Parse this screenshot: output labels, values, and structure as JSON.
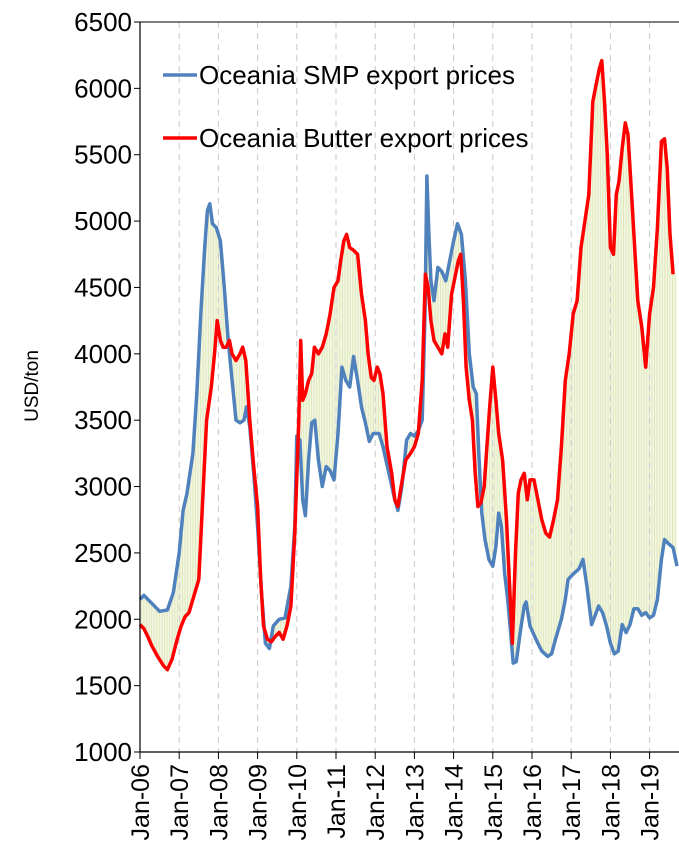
{
  "chart_data": {
    "type": "line",
    "title": "",
    "xlabel": "",
    "ylabel": "USD/ton",
    "ylim": [
      1000,
      6500
    ],
    "y_ticks": [
      "6500",
      "6000",
      "5500",
      "5000",
      "4500",
      "4000",
      "3500",
      "3000",
      "2500",
      "2000",
      "1500",
      "1000"
    ],
    "x_tick_labels": [
      "Jan-06",
      "Jan-07",
      "Jan-08",
      "Jan-09",
      "Jan-10",
      "Jan-11",
      "Jan-12",
      "Jan-13",
      "Jan-14",
      "Jan-15",
      "Jan-16",
      "Jan-17",
      "Jan-18",
      "Jan-19"
    ],
    "grid": "vertical dashed",
    "legend_position": "top-left",
    "series": [
      {
        "name": "Oceania SMP export prices",
        "color": "#4f81bd",
        "points": [
          [
            2006.0,
            2150
          ],
          [
            2006.1,
            2180
          ],
          [
            2006.3,
            2120
          ],
          [
            2006.5,
            2060
          ],
          [
            2006.7,
            2070
          ],
          [
            2006.85,
            2200
          ],
          [
            2007.0,
            2500
          ],
          [
            2007.1,
            2820
          ],
          [
            2007.2,
            2950
          ],
          [
            2007.35,
            3250
          ],
          [
            2007.45,
            3700
          ],
          [
            2007.55,
            4300
          ],
          [
            2007.65,
            4800
          ],
          [
            2007.72,
            5080
          ],
          [
            2007.78,
            5130
          ],
          [
            2007.85,
            4980
          ],
          [
            2007.95,
            4950
          ],
          [
            2008.05,
            4850
          ],
          [
            2008.15,
            4500
          ],
          [
            2008.25,
            4100
          ],
          [
            2008.35,
            3800
          ],
          [
            2008.45,
            3500
          ],
          [
            2008.55,
            3480
          ],
          [
            2008.65,
            3500
          ],
          [
            2008.72,
            3600
          ],
          [
            2008.8,
            3450
          ],
          [
            2008.9,
            3100
          ],
          [
            2009.0,
            2700
          ],
          [
            2009.1,
            2200
          ],
          [
            2009.2,
            1820
          ],
          [
            2009.3,
            1780
          ],
          [
            2009.4,
            1950
          ],
          [
            2009.55,
            2000
          ],
          [
            2009.7,
            2010
          ],
          [
            2009.85,
            2250
          ],
          [
            2009.95,
            2700
          ],
          [
            2010.0,
            3380
          ],
          [
            2010.08,
            3350
          ],
          [
            2010.15,
            2900
          ],
          [
            2010.22,
            2780
          ],
          [
            2010.3,
            3200
          ],
          [
            2010.38,
            3480
          ],
          [
            2010.46,
            3500
          ],
          [
            2010.55,
            3200
          ],
          [
            2010.65,
            3000
          ],
          [
            2010.75,
            3150
          ],
          [
            2010.85,
            3120
          ],
          [
            2010.95,
            3050
          ],
          [
            2011.05,
            3400
          ],
          [
            2011.15,
            3900
          ],
          [
            2011.25,
            3800
          ],
          [
            2011.35,
            3750
          ],
          [
            2011.45,
            3980
          ],
          [
            2011.55,
            3800
          ],
          [
            2011.65,
            3600
          ],
          [
            2011.75,
            3480
          ],
          [
            2011.85,
            3340
          ],
          [
            2011.95,
            3400
          ],
          [
            2012.1,
            3400
          ],
          [
            2012.2,
            3300
          ],
          [
            2012.35,
            3100
          ],
          [
            2012.5,
            2900
          ],
          [
            2012.58,
            2820
          ],
          [
            2012.68,
            3000
          ],
          [
            2012.8,
            3350
          ],
          [
            2012.9,
            3400
          ],
          [
            2013.0,
            3380
          ],
          [
            2013.1,
            3420
          ],
          [
            2013.2,
            3500
          ],
          [
            2013.27,
            4300
          ],
          [
            2013.32,
            5340
          ],
          [
            2013.37,
            4900
          ],
          [
            2013.42,
            4550
          ],
          [
            2013.5,
            4400
          ],
          [
            2013.6,
            4650
          ],
          [
            2013.7,
            4620
          ],
          [
            2013.8,
            4550
          ],
          [
            2013.9,
            4700
          ],
          [
            2014.0,
            4850
          ],
          [
            2014.1,
            4980
          ],
          [
            2014.2,
            4900
          ],
          [
            2014.3,
            4550
          ],
          [
            2014.4,
            4000
          ],
          [
            2014.5,
            3750
          ],
          [
            2014.58,
            3700
          ],
          [
            2014.65,
            3200
          ],
          [
            2014.72,
            2800
          ],
          [
            2014.8,
            2600
          ],
          [
            2014.9,
            2450
          ],
          [
            2015.0,
            2400
          ],
          [
            2015.08,
            2550
          ],
          [
            2015.15,
            2800
          ],
          [
            2015.22,
            2700
          ],
          [
            2015.3,
            2350
          ],
          [
            2015.38,
            2150
          ],
          [
            2015.45,
            1920
          ],
          [
            2015.52,
            1670
          ],
          [
            2015.6,
            1680
          ],
          [
            2015.7,
            1900
          ],
          [
            2015.8,
            2100
          ],
          [
            2015.85,
            2130
          ],
          [
            2015.95,
            1950
          ],
          [
            2016.1,
            1850
          ],
          [
            2016.25,
            1760
          ],
          [
            2016.4,
            1720
          ],
          [
            2016.5,
            1740
          ],
          [
            2016.6,
            1850
          ],
          [
            2016.75,
            2000
          ],
          [
            2016.85,
            2150
          ],
          [
            2016.92,
            2300
          ],
          [
            2017.05,
            2340
          ],
          [
            2017.2,
            2380
          ],
          [
            2017.3,
            2450
          ],
          [
            2017.4,
            2250
          ],
          [
            2017.52,
            1960
          ],
          [
            2017.6,
            2020
          ],
          [
            2017.7,
            2100
          ],
          [
            2017.8,
            2050
          ],
          [
            2017.9,
            1950
          ],
          [
            2018.0,
            1820
          ],
          [
            2018.1,
            1740
          ],
          [
            2018.2,
            1760
          ],
          [
            2018.3,
            1960
          ],
          [
            2018.4,
            1900
          ],
          [
            2018.5,
            1960
          ],
          [
            2018.6,
            2080
          ],
          [
            2018.7,
            2080
          ],
          [
            2018.8,
            2030
          ],
          [
            2018.9,
            2050
          ],
          [
            2019.0,
            2010
          ],
          [
            2019.1,
            2030
          ],
          [
            2019.2,
            2150
          ],
          [
            2019.3,
            2450
          ],
          [
            2019.38,
            2600
          ],
          [
            2019.48,
            2570
          ],
          [
            2019.6,
            2540
          ],
          [
            2019.7,
            2400
          ]
        ]
      },
      {
        "name": "Oceania Butter export prices",
        "color": "#ff0000",
        "points": [
          [
            2006.0,
            1960
          ],
          [
            2006.1,
            1930
          ],
          [
            2006.2,
            1870
          ],
          [
            2006.3,
            1800
          ],
          [
            2006.45,
            1720
          ],
          [
            2006.6,
            1650
          ],
          [
            2006.7,
            1620
          ],
          [
            2006.82,
            1700
          ],
          [
            2006.95,
            1850
          ],
          [
            2007.05,
            1950
          ],
          [
            2007.15,
            2020
          ],
          [
            2007.25,
            2050
          ],
          [
            2007.35,
            2150
          ],
          [
            2007.5,
            2300
          ],
          [
            2007.6,
            2900
          ],
          [
            2007.7,
            3500
          ],
          [
            2007.82,
            3750
          ],
          [
            2007.9,
            4000
          ],
          [
            2007.97,
            4250
          ],
          [
            2008.05,
            4100
          ],
          [
            2008.12,
            4050
          ],
          [
            2008.2,
            4050
          ],
          [
            2008.28,
            4100
          ],
          [
            2008.35,
            4000
          ],
          [
            2008.45,
            3950
          ],
          [
            2008.55,
            4000
          ],
          [
            2008.62,
            4050
          ],
          [
            2008.7,
            3950
          ],
          [
            2008.8,
            3500
          ],
          [
            2008.9,
            3150
          ],
          [
            2009.0,
            2850
          ],
          [
            2009.08,
            2300
          ],
          [
            2009.15,
            1950
          ],
          [
            2009.25,
            1850
          ],
          [
            2009.35,
            1830
          ],
          [
            2009.45,
            1870
          ],
          [
            2009.55,
            1900
          ],
          [
            2009.65,
            1850
          ],
          [
            2009.75,
            1950
          ],
          [
            2009.85,
            2100
          ],
          [
            2009.95,
            2650
          ],
          [
            2010.05,
            3500
          ],
          [
            2010.1,
            4100
          ],
          [
            2010.15,
            3650
          ],
          [
            2010.22,
            3700
          ],
          [
            2010.3,
            3800
          ],
          [
            2010.38,
            3850
          ],
          [
            2010.45,
            4050
          ],
          [
            2010.55,
            4000
          ],
          [
            2010.65,
            4050
          ],
          [
            2010.75,
            4150
          ],
          [
            2010.85,
            4300
          ],
          [
            2010.95,
            4500
          ],
          [
            2011.05,
            4550
          ],
          [
            2011.12,
            4700
          ],
          [
            2011.2,
            4850
          ],
          [
            2011.27,
            4900
          ],
          [
            2011.35,
            4800
          ],
          [
            2011.45,
            4780
          ],
          [
            2011.55,
            4750
          ],
          [
            2011.65,
            4450
          ],
          [
            2011.75,
            4250
          ],
          [
            2011.82,
            4000
          ],
          [
            2011.9,
            3820
          ],
          [
            2011.97,
            3800
          ],
          [
            2012.05,
            3900
          ],
          [
            2012.12,
            3850
          ],
          [
            2012.2,
            3700
          ],
          [
            2012.3,
            3300
          ],
          [
            2012.42,
            3100
          ],
          [
            2012.5,
            2900
          ],
          [
            2012.58,
            2850
          ],
          [
            2012.66,
            3000
          ],
          [
            2012.78,
            3200
          ],
          [
            2012.9,
            3250
          ],
          [
            2013.0,
            3300
          ],
          [
            2013.1,
            3400
          ],
          [
            2013.2,
            3800
          ],
          [
            2013.28,
            4600
          ],
          [
            2013.35,
            4500
          ],
          [
            2013.42,
            4250
          ],
          [
            2013.5,
            4100
          ],
          [
            2013.6,
            4050
          ],
          [
            2013.7,
            4000
          ],
          [
            2013.78,
            4150
          ],
          [
            2013.85,
            4050
          ],
          [
            2013.95,
            4450
          ],
          [
            2014.05,
            4600
          ],
          [
            2014.12,
            4700
          ],
          [
            2014.18,
            4750
          ],
          [
            2014.25,
            4400
          ],
          [
            2014.32,
            3900
          ],
          [
            2014.4,
            3650
          ],
          [
            2014.48,
            3500
          ],
          [
            2014.55,
            3100
          ],
          [
            2014.62,
            2850
          ],
          [
            2014.7,
            2880
          ],
          [
            2014.78,
            3000
          ],
          [
            2014.85,
            3300
          ],
          [
            2014.92,
            3600
          ],
          [
            2015.0,
            3900
          ],
          [
            2015.08,
            3650
          ],
          [
            2015.15,
            3400
          ],
          [
            2015.25,
            3200
          ],
          [
            2015.35,
            2750
          ],
          [
            2015.42,
            2300
          ],
          [
            2015.5,
            1820
          ],
          [
            2015.58,
            2500
          ],
          [
            2015.65,
            2950
          ],
          [
            2015.72,
            3050
          ],
          [
            2015.8,
            3100
          ],
          [
            2015.88,
            2900
          ],
          [
            2015.95,
            3050
          ],
          [
            2016.05,
            3050
          ],
          [
            2016.15,
            2900
          ],
          [
            2016.25,
            2750
          ],
          [
            2016.35,
            2650
          ],
          [
            2016.45,
            2620
          ],
          [
            2016.55,
            2750
          ],
          [
            2016.65,
            2900
          ],
          [
            2016.75,
            3300
          ],
          [
            2016.85,
            3800
          ],
          [
            2016.95,
            4000
          ],
          [
            2017.05,
            4300
          ],
          [
            2017.15,
            4400
          ],
          [
            2017.25,
            4800
          ],
          [
            2017.35,
            5000
          ],
          [
            2017.45,
            5200
          ],
          [
            2017.55,
            5900
          ],
          [
            2017.65,
            6050
          ],
          [
            2017.72,
            6150
          ],
          [
            2017.78,
            6210
          ],
          [
            2017.85,
            5900
          ],
          [
            2017.92,
            5500
          ],
          [
            2018.0,
            4800
          ],
          [
            2018.08,
            4750
          ],
          [
            2018.15,
            5200
          ],
          [
            2018.22,
            5300
          ],
          [
            2018.3,
            5550
          ],
          [
            2018.38,
            5740
          ],
          [
            2018.45,
            5650
          ],
          [
            2018.52,
            5300
          ],
          [
            2018.6,
            4900
          ],
          [
            2018.7,
            4400
          ],
          [
            2018.8,
            4200
          ],
          [
            2018.9,
            3900
          ],
          [
            2019.0,
            4300
          ],
          [
            2019.1,
            4500
          ],
          [
            2019.2,
            4950
          ],
          [
            2019.3,
            5600
          ],
          [
            2019.38,
            5620
          ],
          [
            2019.45,
            5400
          ],
          [
            2019.52,
            4900
          ],
          [
            2019.6,
            4600
          ]
        ]
      }
    ]
  }
}
